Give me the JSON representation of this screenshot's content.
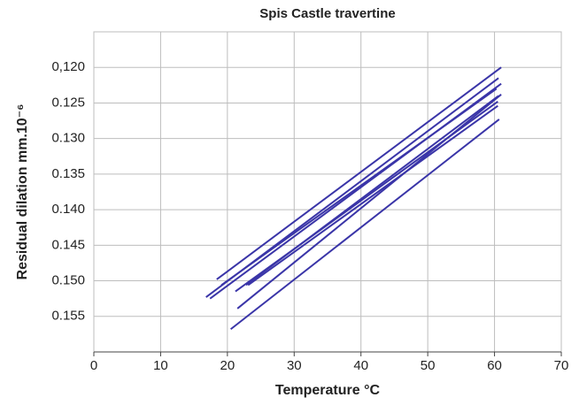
{
  "chart_data": {
    "type": "line",
    "title": "Spis Castle travertine",
    "xlabel": "Temperature °C",
    "ylabel": "Residual dilation mm.10⁻⁶",
    "xlim": [
      0,
      70
    ],
    "xticks": [
      0,
      10,
      20,
      30,
      40,
      50,
      60,
      70
    ],
    "ylim": [
      0.115,
      0.16
    ],
    "y_inverted": true,
    "yticks": [
      {
        "value": 0.12,
        "label": "0,120"
      },
      0.125,
      {
        "value": 0.13,
        "label": "0.130"
      },
      0.135,
      {
        "value": 0.14,
        "label": "0.140"
      },
      0.145,
      {
        "value": 0.15,
        "label": "0.150"
      },
      0.155
    ],
    "grid": true,
    "color": "#3a35a8",
    "series": [
      {
        "x": [
          18.4,
          61.0
        ],
        "values": [
          0.1498,
          0.12
        ]
      },
      {
        "x": [
          16.8,
          60.6
        ],
        "values": [
          0.1523,
          0.1215
        ]
      },
      {
        "x": [
          17.4,
          61.0
        ],
        "values": [
          0.1525,
          0.1223
        ]
      },
      {
        "x": [
          19.1,
          60.3
        ],
        "values": [
          0.1506,
          0.123
        ]
      },
      {
        "x": [
          22.8,
          60.6
        ],
        "values": [
          0.1506,
          0.124
        ]
      },
      {
        "x": [
          21.2,
          60.5
        ],
        "values": [
          0.1515,
          0.1248
        ]
      },
      {
        "x": [
          23.1,
          60.5
        ],
        "values": [
          0.1506,
          0.1254
        ]
      },
      {
        "x": [
          21.5,
          61.0
        ],
        "values": [
          0.1539,
          0.1238
        ]
      },
      {
        "x": [
          20.5,
          60.7
        ],
        "values": [
          0.1568,
          0.1273
        ]
      }
    ]
  }
}
